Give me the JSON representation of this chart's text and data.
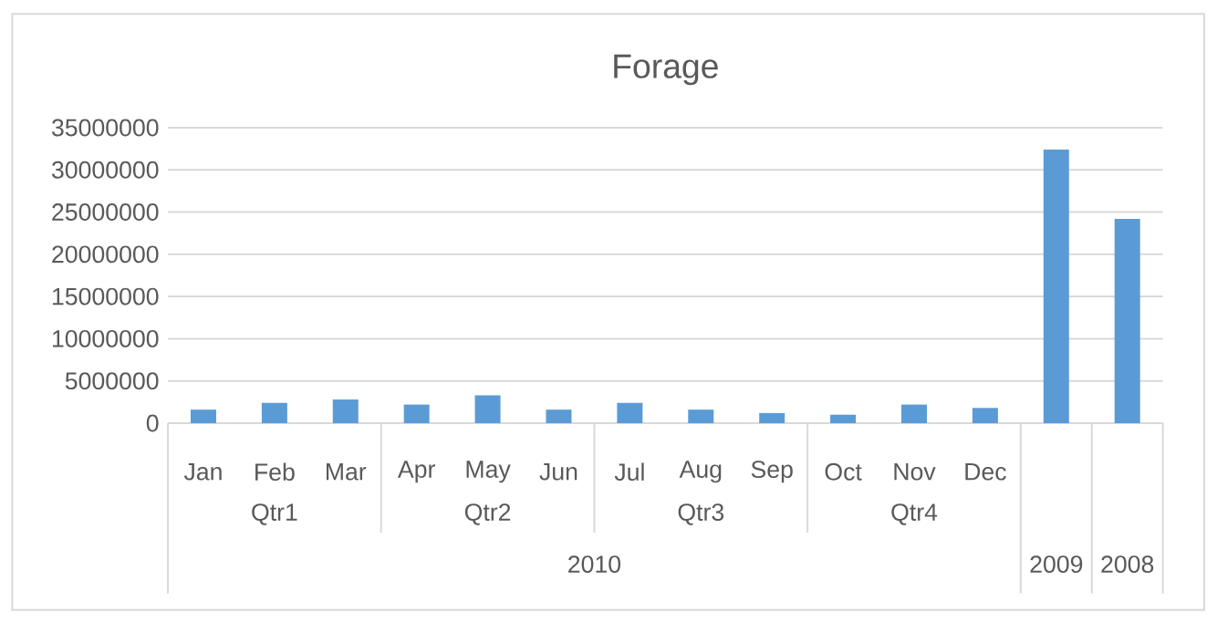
{
  "chart_data": {
    "type": "bar",
    "title": "Forage",
    "categories": [
      "Jan",
      "Feb",
      "Mar",
      "Apr",
      "May",
      "Jun",
      "Jul",
      "Aug",
      "Sep",
      "Oct",
      "Nov",
      "Dec",
      null,
      null
    ],
    "values": [
      1600000,
      2400000,
      2800000,
      2200000,
      3300000,
      1600000,
      2400000,
      1600000,
      1200000,
      1000000,
      2200000,
      1800000,
      32400000,
      24200000
    ],
    "color": "#5b9bd5",
    "annotations": [
      "Qtr1",
      "Qtr2",
      "Qtr3",
      "Qtr4",
      "2010",
      "2009",
      "2008"
    ],
    "ylim": [
      0,
      35000000
    ],
    "yticks": [
      0,
      5000000,
      10000000,
      15000000,
      20000000,
      25000000,
      30000000,
      35000000
    ],
    "grid": "y"
  }
}
